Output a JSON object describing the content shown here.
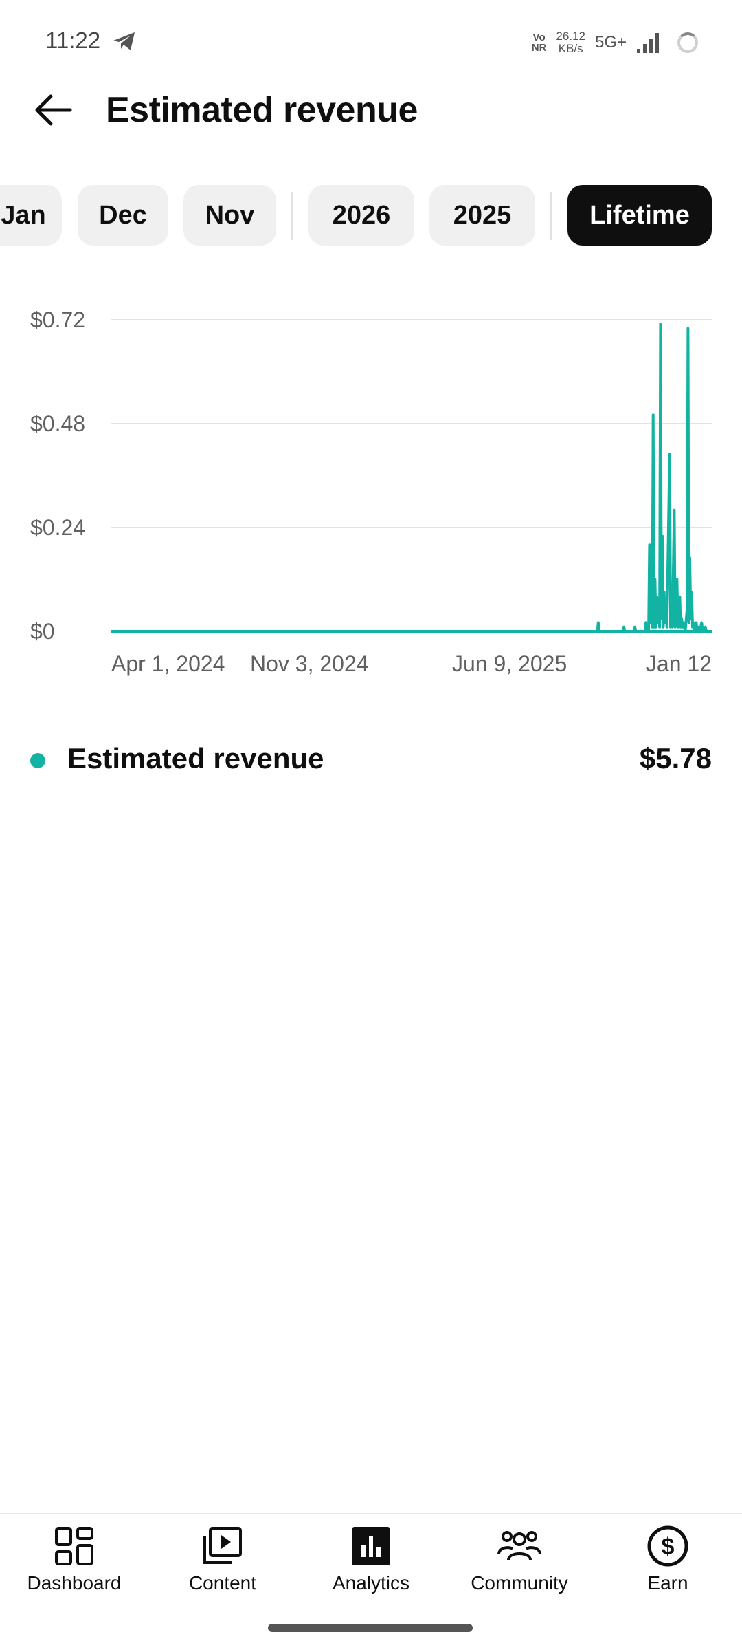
{
  "status_bar": {
    "time": "11:22",
    "volte_top": "Vo",
    "volte_bottom": "NR",
    "speed_value": "26.12",
    "speed_unit": "KB/s",
    "network": "5G+"
  },
  "header": {
    "title": "Estimated revenue",
    "back_icon": "arrow-left-icon"
  },
  "filters": {
    "chips": [
      "Jan",
      "Dec",
      "Nov",
      "2026",
      "2025",
      "Lifetime"
    ],
    "selected": "Lifetime"
  },
  "chart_data": {
    "type": "line",
    "title": "",
    "xlabel": "",
    "ylabel": "",
    "y_ticks": [
      "$0.72",
      "$0.48",
      "$0.24",
      "$0"
    ],
    "x_ticks": [
      "Apr 1, 2024",
      "Nov 3, 2024",
      "Jun 9, 2025",
      "Jan 12"
    ],
    "x_range": [
      "2024-04-01",
      "2026-01-17"
    ],
    "ylim": [
      0,
      0.72
    ],
    "grid": true,
    "legend": "below",
    "series": [
      {
        "name": "Estimated revenue",
        "color": "#12b3a3",
        "points": [
          [
            "2024-04-01",
            0
          ],
          [
            "2025-09-14",
            0
          ],
          [
            "2025-09-15",
            0.02
          ],
          [
            "2025-09-16",
            0
          ],
          [
            "2025-10-12",
            0
          ],
          [
            "2025-10-13",
            0.01
          ],
          [
            "2025-10-14",
            0
          ],
          [
            "2025-10-24",
            0
          ],
          [
            "2025-10-25",
            0.01
          ],
          [
            "2025-10-26",
            0
          ],
          [
            "2025-11-05",
            0
          ],
          [
            "2025-11-06",
            0.02
          ],
          [
            "2025-11-07",
            0
          ],
          [
            "2025-11-09",
            0
          ],
          [
            "2025-11-10",
            0.2
          ],
          [
            "2025-11-11",
            0.02
          ],
          [
            "2025-11-12",
            0.1
          ],
          [
            "2025-11-13",
            0.01
          ],
          [
            "2025-11-14",
            0.5
          ],
          [
            "2025-11-15",
            0.01
          ],
          [
            "2025-11-16",
            0.12
          ],
          [
            "2025-11-17",
            0.01
          ],
          [
            "2025-11-18",
            0.08
          ],
          [
            "2025-11-19",
            0.02
          ],
          [
            "2025-11-20",
            0.07
          ],
          [
            "2025-11-21",
            0.01
          ],
          [
            "2025-11-22",
            0.71
          ],
          [
            "2025-11-23",
            0.03
          ],
          [
            "2025-11-24",
            0.22
          ],
          [
            "2025-11-25",
            0.01
          ],
          [
            "2025-11-26",
            0.09
          ],
          [
            "2025-11-27",
            0.02
          ],
          [
            "2025-11-28",
            0.06
          ],
          [
            "2025-11-29",
            0.01
          ],
          [
            "2025-12-02",
            0.41
          ],
          [
            "2025-12-03",
            0.01
          ],
          [
            "2025-12-04",
            0.05
          ],
          [
            "2025-12-05",
            0.01
          ],
          [
            "2025-12-07",
            0.28
          ],
          [
            "2025-12-08",
            0.01
          ],
          [
            "2025-12-09",
            0.03
          ],
          [
            "2025-12-10",
            0.12
          ],
          [
            "2025-12-11",
            0.01
          ],
          [
            "2025-12-13",
            0.08
          ],
          [
            "2025-12-14",
            0.01
          ],
          [
            "2025-12-15",
            0.03
          ],
          [
            "2025-12-16",
            0.01
          ],
          [
            "2025-12-17",
            0.02
          ],
          [
            "2025-12-19",
            0.0
          ],
          [
            "2025-12-21",
            0.05
          ],
          [
            "2025-12-22",
            0.7
          ],
          [
            "2025-12-23",
            0.02
          ],
          [
            "2025-12-24",
            0.17
          ],
          [
            "2025-12-25",
            0.03
          ],
          [
            "2025-12-26",
            0.09
          ],
          [
            "2025-12-27",
            0.01
          ],
          [
            "2025-12-28",
            0.02
          ],
          [
            "2025-12-29",
            0.0
          ],
          [
            "2025-12-31",
            0.02
          ],
          [
            "2026-01-01",
            0.0
          ],
          [
            "2026-01-03",
            0.01
          ],
          [
            "2026-01-04",
            0.0
          ],
          [
            "2026-01-06",
            0.02
          ],
          [
            "2026-01-07",
            0.0
          ],
          [
            "2026-01-10",
            0.01
          ],
          [
            "2026-01-11",
            0.0
          ],
          [
            "2026-01-17",
            0
          ]
        ]
      }
    ]
  },
  "legend": {
    "label": "Estimated revenue",
    "value": "$5.78",
    "color": "#12b3a3"
  },
  "bottom_nav": {
    "items": [
      {
        "label": "Dashboard",
        "icon": "dashboard-icon"
      },
      {
        "label": "Content",
        "icon": "content-icon"
      },
      {
        "label": "Analytics",
        "icon": "analytics-icon"
      },
      {
        "label": "Community",
        "icon": "community-icon"
      },
      {
        "label": "Earn",
        "icon": "earn-icon"
      }
    ],
    "selected": "Analytics"
  }
}
